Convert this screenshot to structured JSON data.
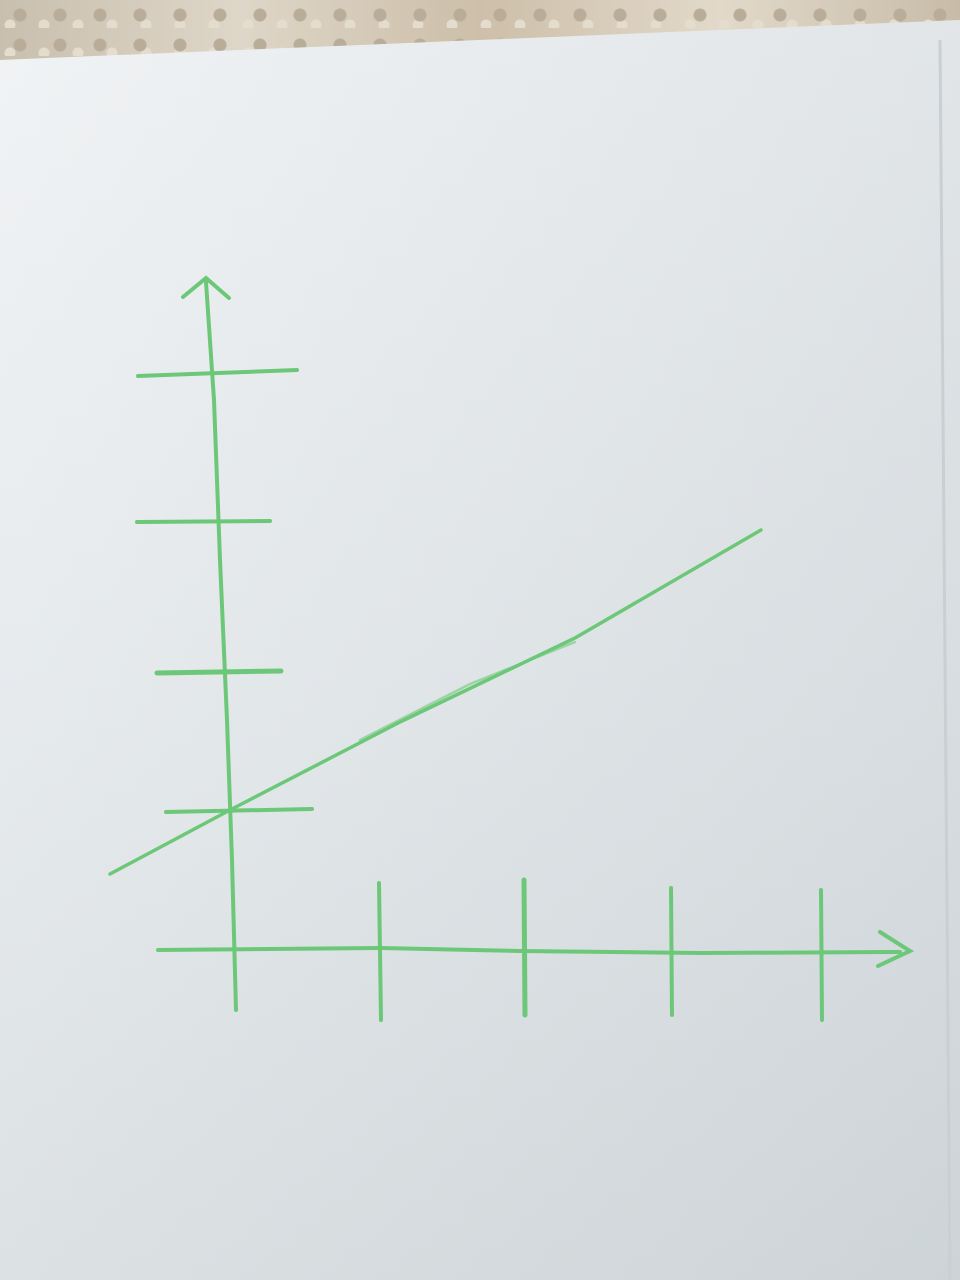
{
  "scene": {
    "background_color": "#d5cdbf",
    "paper_color": "#e3e8eb",
    "pen_color": "#6cc878"
  },
  "drawing": {
    "description_items": [
      "y-axis-with-arrow",
      "x-axis-with-arrow",
      "four-y-ticks",
      "four-x-ticks",
      "straight-increasing-line"
    ],
    "x_tick_count": 4,
    "y_tick_count": 4,
    "line_intercept_tick": 1
  }
}
